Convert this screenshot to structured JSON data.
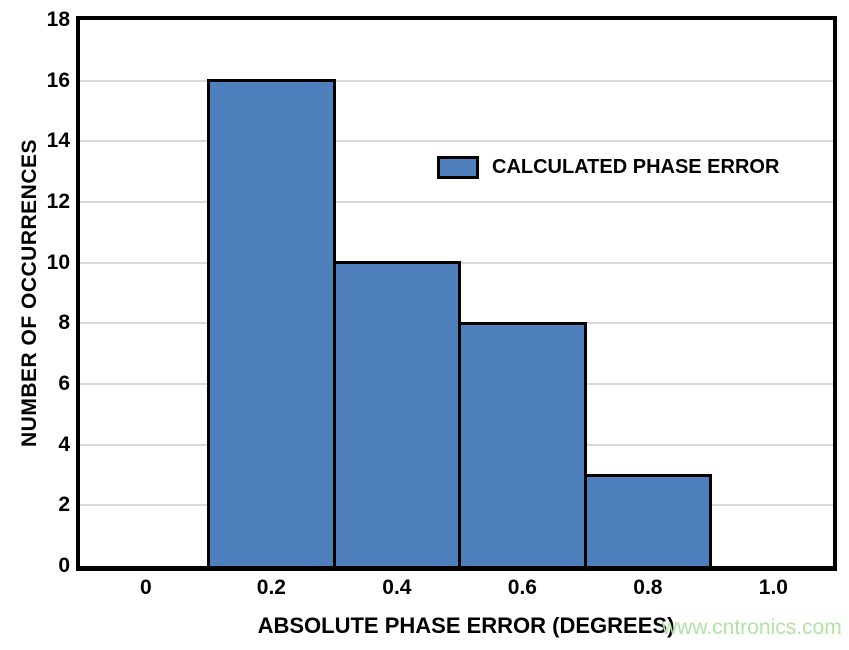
{
  "chart_data": {
    "type": "bar",
    "title": "",
    "xlabel": "ABSOLUTE PHASE ERROR (DEGREES)",
    "ylabel": "NUMBER OF OCCURRENCES",
    "bars": [
      {
        "x_start": 0.1,
        "x_end": 0.3,
        "value": 16
      },
      {
        "x_start": 0.3,
        "x_end": 0.5,
        "value": 10
      },
      {
        "x_start": 0.5,
        "x_end": 0.7,
        "value": 8
      },
      {
        "x_start": 0.7,
        "x_end": 0.9,
        "value": 3
      }
    ],
    "x_ticks": [
      0,
      0.2,
      0.4,
      0.6,
      0.8,
      1.0
    ],
    "x_tick_labels": [
      "0",
      "0.2",
      "0.4",
      "0.6",
      "0.8",
      "1.0"
    ],
    "y_ticks": [
      0,
      2,
      4,
      6,
      8,
      10,
      12,
      14,
      16,
      18
    ],
    "y_tick_labels": [
      "0",
      "2",
      "4",
      "6",
      "8",
      "10",
      "12",
      "14",
      "16",
      "18"
    ],
    "xlim": [
      -0.105,
      1.095
    ],
    "ylim": [
      0,
      18
    ],
    "grid": "horizontal",
    "legend": [
      {
        "label": "CALCULATED PHASE ERROR",
        "color": "#4d80bc"
      }
    ],
    "legend_position": "inside-upper-center",
    "bar_fill": "#4d80bc",
    "bar_border": "#000000",
    "gridline_color": "#d9d9d9",
    "axis_color": "#000000"
  },
  "watermark": {
    "text": "www.cntronics.com",
    "color": "#b3e2a6"
  }
}
